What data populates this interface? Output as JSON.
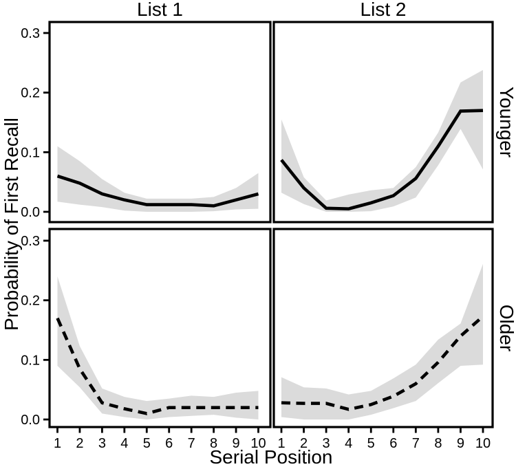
{
  "figure": {
    "background": "#ffffff",
    "text_color": "#000000"
  },
  "chart_data": {
    "type": "line",
    "title": "",
    "xlabel": "Serial Position",
    "ylabel": "Probability of First Recall",
    "facet_col_titles": [
      "List 1",
      "List 2"
    ],
    "facet_row_titles": [
      "Younger",
      "Older"
    ],
    "x": [
      1,
      2,
      3,
      4,
      5,
      6,
      7,
      8,
      9,
      10
    ],
    "x_tick_labels": [
      "1",
      "2",
      "3",
      "4",
      "5",
      "6",
      "7",
      "8",
      "9",
      "10"
    ],
    "y_ticks": [
      0.0,
      0.1,
      0.2,
      0.3
    ],
    "y_tick_labels": [
      "0.0",
      "0.1",
      "0.2",
      "0.3"
    ],
    "ylim": [
      0,
      0.31
    ],
    "grid": "off",
    "legend": "none",
    "line_color": "#000000",
    "ribbon_color": "#dbdbdb",
    "panels": [
      {
        "row": "Younger",
        "col": "List 1",
        "line_style": "solid",
        "y": [
          0.06,
          0.048,
          0.03,
          0.02,
          0.012,
          0.012,
          0.012,
          0.01,
          0.02,
          0.03
        ],
        "upper": [
          0.11,
          0.085,
          0.055,
          0.032,
          0.022,
          0.022,
          0.022,
          0.025,
          0.04,
          0.065
        ],
        "lower": [
          0.017,
          0.012,
          0.008,
          0.002,
          0.0,
          0.0,
          0.0,
          0.001,
          0.004,
          0.005
        ]
      },
      {
        "row": "Younger",
        "col": "List 2",
        "line_style": "solid",
        "y": [
          0.087,
          0.04,
          0.006,
          0.005,
          0.015,
          0.027,
          0.056,
          0.11,
          0.169,
          0.17
        ],
        "upper": [
          0.155,
          0.058,
          0.019,
          0.029,
          0.036,
          0.04,
          0.075,
          0.133,
          0.217,
          0.238
        ],
        "lower": [
          0.032,
          0.013,
          0.0,
          0.0,
          0.001,
          0.009,
          0.024,
          0.078,
          0.139,
          0.071
        ]
      },
      {
        "row": "Older",
        "col": "List 1",
        "line_style": "dashed",
        "y": [
          0.17,
          0.085,
          0.028,
          0.018,
          0.01,
          0.02,
          0.02,
          0.02,
          0.02,
          0.02
        ],
        "upper": [
          0.24,
          0.123,
          0.052,
          0.038,
          0.031,
          0.035,
          0.04,
          0.038,
          0.045,
          0.048
        ],
        "lower": [
          0.09,
          0.054,
          0.01,
          0.004,
          0.0,
          0.004,
          0.006,
          0.008,
          0.003,
          0.0
        ]
      },
      {
        "row": "Older",
        "col": "List 2",
        "line_style": "dashed",
        "y": [
          0.028,
          0.027,
          0.027,
          0.017,
          0.025,
          0.039,
          0.06,
          0.096,
          0.14,
          0.173
        ],
        "upper": [
          0.071,
          0.054,
          0.052,
          0.042,
          0.048,
          0.069,
          0.092,
          0.134,
          0.161,
          0.261
        ],
        "lower": [
          0.004,
          0.0,
          0.0,
          0.0,
          0.008,
          0.019,
          0.031,
          0.061,
          0.09,
          0.092
        ]
      }
    ]
  }
}
